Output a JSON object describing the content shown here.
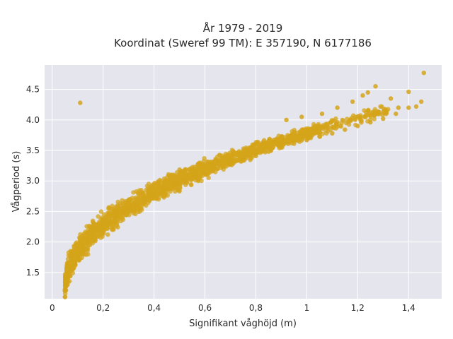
{
  "chart_data": {
    "type": "scatter",
    "title": "År 1979 - 2019",
    "subtitle": "Koordinat (Sweref 99 TM): E 357190, N 6177186",
    "xlabel": "Signifikant våghöjd (m)",
    "ylabel": "Vågperiod (s)",
    "xlim": [
      -0.03,
      1.53
    ],
    "ylim": [
      1.07,
      4.9
    ],
    "xticks": [
      0,
      0.2,
      0.4,
      0.6,
      0.8,
      1.0,
      1.2,
      1.4
    ],
    "xtick_labels": [
      "0",
      "0,2",
      "0,4",
      "0,6",
      "0,8",
      "1",
      "1,2",
      "1,4"
    ],
    "yticks": [
      1.5,
      2.0,
      2.5,
      3.0,
      3.5,
      4.0,
      4.5
    ],
    "ytick_labels": [
      "1.5",
      "2.0",
      "2.5",
      "3.0",
      "3.5",
      "4.0",
      "4.5"
    ],
    "grid": true,
    "marker_color": "#d4a419",
    "background_color": "#e5e5ee",
    "series": [
      {
        "x": [
          0.05,
          0.06,
          0.07,
          0.08,
          0.09,
          0.1,
          0.11,
          0.12,
          0.14,
          0.16,
          0.18,
          0.2,
          0.22,
          0.25,
          0.28,
          0.3,
          0.33,
          0.36,
          0.4,
          0.44,
          0.48,
          0.52,
          0.56,
          0.6,
          0.65,
          0.7,
          0.75,
          0.8,
          0.85,
          0.9,
          0.95,
          1.0,
          1.05,
          1.1,
          1.15,
          1.2,
          1.25,
          1.3,
          1.35,
          1.4,
          1.45,
          0.11,
          1.46,
          1.43,
          1.27,
          1.4,
          1.36,
          1.33,
          1.24,
          1.22,
          1.18,
          1.12,
          1.06,
          0.98,
          0.92
        ],
        "y": [
          1.2,
          1.3,
          1.45,
          1.55,
          1.65,
          1.72,
          1.8,
          1.88,
          2.0,
          2.1,
          2.18,
          2.25,
          2.32,
          2.42,
          2.5,
          2.55,
          2.62,
          2.7,
          2.78,
          2.86,
          2.93,
          3.0,
          3.06,
          3.12,
          3.2,
          3.27,
          3.34,
          3.41,
          3.48,
          3.55,
          3.61,
          3.67,
          3.73,
          3.78,
          3.84,
          3.9,
          3.96,
          4.02,
          4.1,
          4.2,
          4.3,
          4.28,
          4.77,
          4.22,
          4.55,
          4.46,
          4.2,
          4.35,
          4.45,
          4.4,
          4.3,
          4.2,
          4.1,
          4.05,
          4.0
        ]
      }
    ],
    "trend": {
      "x_min": 0.05,
      "x_max": 1.45,
      "y_at_x_min": 1.2,
      "y_at_x_max": 4.3,
      "curve_exponent": 0.47,
      "spread_at_x_min": 0.3,
      "spread_at_x_max": 0.12,
      "dense_point_count": 1700
    }
  }
}
